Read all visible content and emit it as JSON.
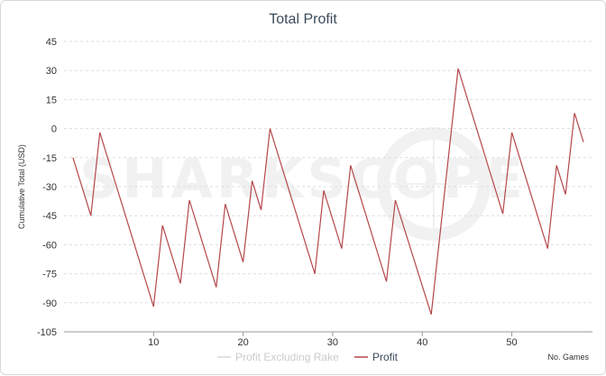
{
  "chart_data": {
    "type": "line",
    "title": "Total Profit",
    "ylabel": "Cumulative Total (USD)",
    "xlabel": "No. Games",
    "ylim": [
      -105,
      50
    ],
    "xlim": [
      0,
      58
    ],
    "yticks": [
      45,
      30,
      15,
      0,
      -15,
      -30,
      -45,
      -60,
      -75,
      -90,
      -105
    ],
    "xticks": [
      10,
      20,
      30,
      40,
      50
    ],
    "grid": true,
    "legend_position": "bottom-center",
    "watermark": "SHARKSCOPE",
    "series": [
      {
        "name": "Profit Excluding Rake",
        "color": "#d6d6d6",
        "visible": false,
        "points": []
      },
      {
        "name": "Profit",
        "color": "#b5474a",
        "visible": true,
        "points": [
          [
            1,
            -15
          ],
          [
            3,
            -45
          ],
          [
            4,
            -2
          ],
          [
            10,
            -92
          ],
          [
            11,
            -50
          ],
          [
            13,
            -80
          ],
          [
            14,
            -37
          ],
          [
            17,
            -82
          ],
          [
            18,
            -39
          ],
          [
            20,
            -69
          ],
          [
            21,
            -27
          ],
          [
            22,
            -42
          ],
          [
            23,
            0
          ],
          [
            28,
            -75
          ],
          [
            29,
            -32
          ],
          [
            31,
            -62
          ],
          [
            32,
            -19
          ],
          [
            36,
            -79
          ],
          [
            37,
            -37
          ],
          [
            41,
            -96
          ],
          [
            44,
            31
          ],
          [
            49,
            -44
          ],
          [
            50,
            -2
          ],
          [
            54,
            -62
          ],
          [
            55,
            -19
          ],
          [
            56,
            -34
          ],
          [
            57,
            8
          ],
          [
            58,
            -7
          ]
        ]
      }
    ]
  }
}
